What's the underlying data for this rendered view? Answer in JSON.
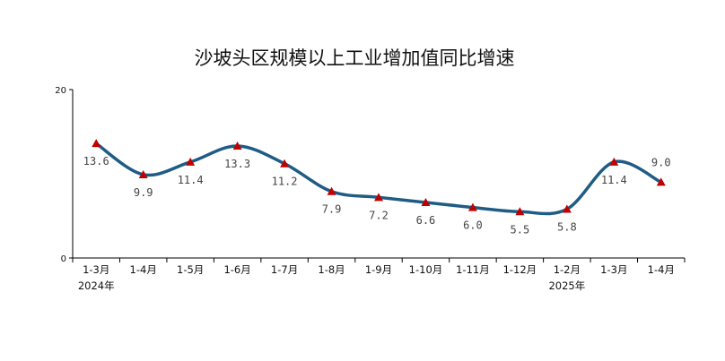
{
  "chart_data": {
    "type": "line",
    "title": "沙坡头区规模以上工业增加值同比增速",
    "categories": [
      "1-3月",
      "1-4月",
      "1-5月",
      "1-6月",
      "1-7月",
      "1-8月",
      "1-9月",
      "1-10月",
      "1-11月",
      "1-12月",
      "1-2月",
      "1-3月",
      "1-4月"
    ],
    "year_labels": [
      {
        "category_index": 0,
        "text": "2024年"
      },
      {
        "category_index": 10,
        "text": "2025年"
      }
    ],
    "series": [
      {
        "values": [
          13.6,
          9.9,
          11.4,
          13.3,
          11.2,
          7.9,
          7.2,
          6.6,
          6.0,
          5.5,
          5.8,
          11.4,
          9.0
        ]
      }
    ],
    "data_labels": [
      "13.6",
      "9.9",
      "11.4",
      "13.3",
      "11.2",
      "7.9",
      "7.2",
      "6.6",
      "6.0",
      "5.5",
      "5.8",
      "11.4",
      "9.0"
    ],
    "label_placement": [
      "below",
      "below",
      "below",
      "below",
      "below",
      "below",
      "below",
      "below",
      "below",
      "below",
      "below",
      "below",
      "above"
    ],
    "ylim": [
      0,
      20
    ],
    "yticks": [
      "0",
      "20"
    ],
    "grid": false,
    "line_color": "#1F5C85",
    "marker_color": "#C00000",
    "marker": "triangle"
  }
}
